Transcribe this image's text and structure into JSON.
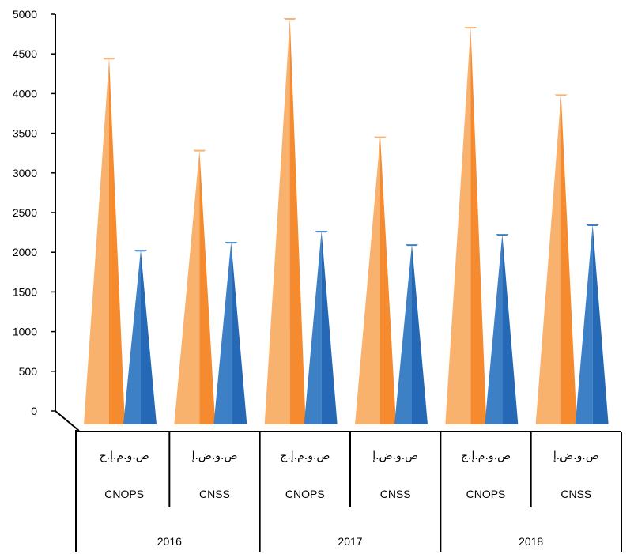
{
  "chart_data": {
    "type": "bar",
    "title": "",
    "xlabel": "",
    "ylabel": "",
    "ylim": [
      0,
      5000
    ],
    "yticks": [
      0,
      500,
      1000,
      1500,
      2000,
      2500,
      3000,
      3500,
      4000,
      4500,
      5000
    ],
    "grid": false,
    "legend": "none",
    "categories": [
      {
        "year": "2016",
        "fund": "CNOPS",
        "arabic": "ص.و.م.إ.ج"
      },
      {
        "year": "2016",
        "fund": "CNSS",
        "arabic": "ص.و.ض.إ"
      },
      {
        "year": "2017",
        "fund": "CNOPS",
        "arabic": "ص.و.م.إ.ج"
      },
      {
        "year": "2017",
        "fund": "CNSS",
        "arabic": "ص.و.ض.إ"
      },
      {
        "year": "2018",
        "fund": "CNOPS",
        "arabic": "ص.و.م.إ.ج"
      },
      {
        "year": "2018",
        "fund": "CNSS",
        "arabic": "ص.و.ض.إ"
      }
    ],
    "years": [
      "2016",
      "2017",
      "2018"
    ],
    "series": [
      {
        "color": "#f58a2e",
        "light": "#f9b26e",
        "values": [
          4450,
          3290,
          4950,
          3460,
          4840,
          3990
        ]
      },
      {
        "color": "#2569b6",
        "light": "#3e80c6",
        "values": [
          2030,
          2130,
          2270,
          2100,
          2230,
          2350
        ]
      }
    ]
  }
}
